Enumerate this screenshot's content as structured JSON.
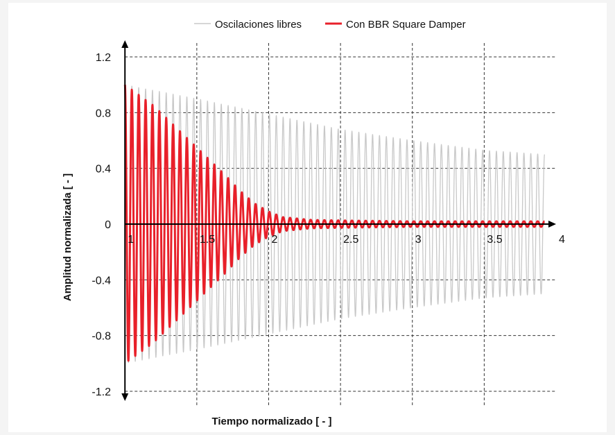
{
  "chart_data": {
    "type": "line",
    "title": "",
    "xlabel": "Tiempo normalizado  [ - ]",
    "ylabel": "Amplitud normalizada  [ - ]",
    "xlim": [
      0.97,
      4.0
    ],
    "ylim": [
      -1.24,
      1.24
    ],
    "x_ticks": [
      1,
      1.5,
      2,
      2.5,
      3,
      3.5,
      4
    ],
    "x_tick_labels": [
      "1",
      "1.5",
      "2",
      "2.5",
      "3",
      "3.5",
      "4"
    ],
    "y_ticks": [
      1.2,
      0.8,
      0.4,
      0,
      -0.4,
      -0.8,
      -1.2
    ],
    "y_tick_labels": [
      "1.2",
      "0.8",
      "0.4",
      "0",
      "-0.4",
      "-0.8",
      "-1.2"
    ],
    "grid": "dashed",
    "legend_position": "top-center",
    "series": [
      {
        "name": "Oscilaciones libres",
        "color": "#c8c8c8",
        "x_start": 1.0,
        "x_end": 3.92,
        "cycles": 61,
        "envelope": {
          "x": [
            1.0,
            1.5,
            2.0,
            2.5,
            3.0,
            3.5,
            3.92
          ],
          "amp": [
            1.0,
            0.9,
            0.79,
            0.68,
            0.6,
            0.53,
            0.5
          ]
        }
      },
      {
        "name": "Con BBR Square Damper",
        "color": "#e8202a",
        "x_start": 1.0,
        "x_end": 3.92,
        "cycles": 61,
        "envelope": {
          "x": [
            1.0,
            1.2,
            1.4,
            1.5,
            1.7,
            1.8,
            1.9,
            2.0,
            2.1,
            2.3,
            2.6,
            3.0,
            3.92
          ],
          "amp": [
            1.0,
            0.85,
            0.65,
            0.55,
            0.35,
            0.24,
            0.15,
            0.09,
            0.05,
            0.03,
            0.025,
            0.02,
            0.02
          ]
        }
      }
    ]
  }
}
